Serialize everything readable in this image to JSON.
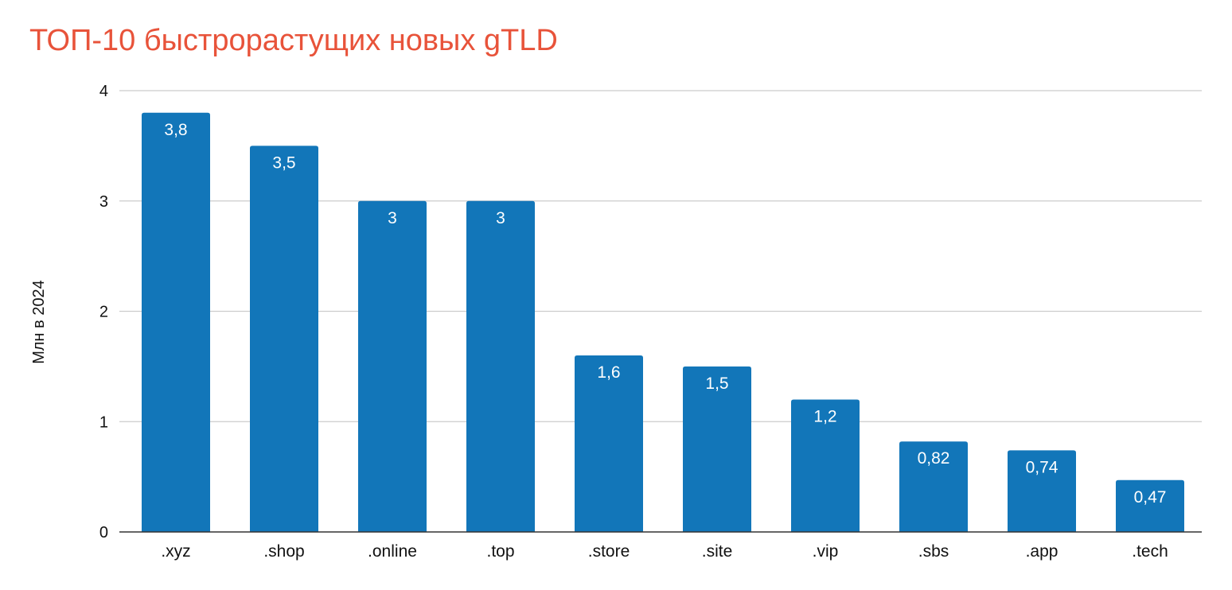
{
  "chart_data": {
    "type": "bar",
    "title": "ТОП-10 быстрорастущих новых gTLD",
    "xlabel": "",
    "ylabel": "Млн в 2024",
    "ylim": [
      0,
      4
    ],
    "yticks": [
      "0",
      "1",
      "2",
      "3",
      "4"
    ],
    "grid": true,
    "categories": [
      ".xyz",
      ".shop",
      ".online",
      ".top",
      ".store",
      ".site",
      ".vip",
      ".sbs",
      ".app",
      ".tech"
    ],
    "values": [
      3.8,
      3.5,
      3,
      3,
      1.6,
      1.5,
      1.2,
      0.82,
      0.74,
      0.47
    ],
    "value_labels": [
      "3,8",
      "3,5",
      "3",
      "3",
      "1,6",
      "1,5",
      "1,2",
      "0,82",
      "0,74",
      "0,47"
    ],
    "colors": {
      "bar": "#1276b9",
      "title": "#e8533a",
      "grid": "#cccccc",
      "axis": "#333333"
    }
  }
}
